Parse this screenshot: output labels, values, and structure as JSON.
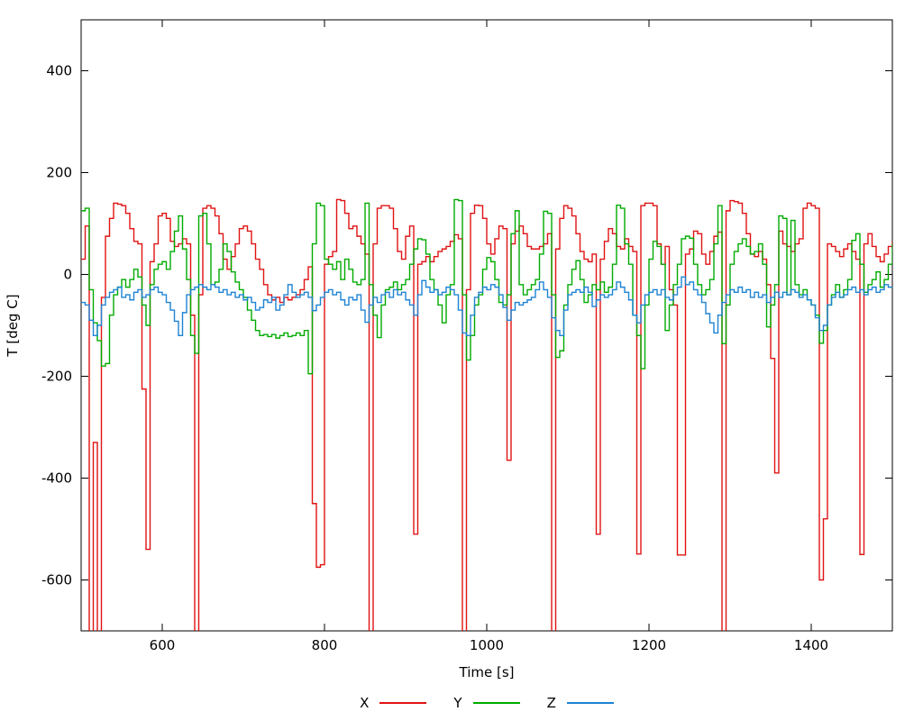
{
  "chart_data": {
    "type": "line",
    "line_style": "steps",
    "title": "",
    "xlabel": "Time [s]",
    "ylabel": "T [deg C]",
    "xlim": [
      500,
      1500
    ],
    "ylim": [
      -700,
      500
    ],
    "xticks": [
      600,
      800,
      1000,
      1200,
      1400
    ],
    "yticks": [
      -600,
      -400,
      -200,
      0,
      200,
      400
    ],
    "grid": false,
    "legend_position": "bottom-center",
    "axis_color": "#000000",
    "x_start": 500,
    "x_step": 5,
    "series": [
      {
        "name": "X",
        "color": "#e01212",
        "values": [
          30,
          95,
          -720,
          -330,
          -730,
          -45,
          75,
          110,
          140,
          138,
          135,
          120,
          90,
          65,
          60,
          -225,
          -540,
          25,
          60,
          115,
          120,
          110,
          65,
          55,
          60,
          70,
          60,
          -80,
          -750,
          -40,
          130,
          135,
          130,
          115,
          80,
          30,
          10,
          35,
          60,
          90,
          95,
          85,
          60,
          30,
          10,
          -20,
          -40,
          -50,
          -45,
          -55,
          -45,
          -50,
          -45,
          -40,
          -30,
          -10,
          15,
          -450,
          -575,
          -570,
          20,
          35,
          45,
          147,
          145,
          120,
          90,
          95,
          75,
          60,
          40,
          -750,
          60,
          130,
          135,
          135,
          130,
          90,
          45,
          30,
          75,
          95,
          -510,
          20,
          25,
          35,
          25,
          35,
          45,
          50,
          55,
          65,
          78,
          70,
          -730,
          -30,
          120,
          136,
          135,
          110,
          60,
          40,
          70,
          95,
          90,
          -365,
          60,
          85,
          95,
          80,
          55,
          50,
          50,
          55,
          60,
          80,
          -730,
          50,
          110,
          135,
          130,
          115,
          80,
          45,
          30,
          25,
          40,
          -510,
          30,
          65,
          90,
          80,
          55,
          50,
          70,
          55,
          45,
          -549,
          135,
          140,
          140,
          135,
          60,
          20,
          55,
          -30,
          -60,
          -551,
          -551,
          40,
          50,
          85,
          80,
          40,
          20,
          45,
          75,
          83,
          -750,
          125,
          145,
          143,
          140,
          120,
          80,
          40,
          35,
          45,
          30,
          -20,
          -165,
          -390,
          85,
          60,
          55,
          45,
          60,
          70,
          130,
          140,
          135,
          130,
          -600,
          -480,
          60,
          55,
          45,
          35,
          50,
          60,
          45,
          30,
          -550,
          60,
          80,
          55,
          35,
          25,
          40,
          55,
          65
        ]
      },
      {
        "name": "Y",
        "color": "#00ab00",
        "values": [
          125,
          130,
          -30,
          -95,
          -130,
          -180,
          -175,
          -80,
          -40,
          -25,
          -10,
          -25,
          -10,
          10,
          -5,
          -60,
          -100,
          -20,
          10,
          20,
          25,
          10,
          45,
          85,
          115,
          50,
          -10,
          -120,
          -155,
          115,
          120,
          60,
          -20,
          -15,
          10,
          60,
          45,
          5,
          -15,
          -30,
          -45,
          -70,
          -90,
          -110,
          -120,
          -118,
          -122,
          -118,
          -125,
          -120,
          -115,
          -122,
          -120,
          -115,
          -120,
          -110,
          -195,
          60,
          140,
          135,
          30,
          20,
          10,
          25,
          -10,
          30,
          10,
          -15,
          -20,
          -10,
          140,
          -20,
          -80,
          -124,
          -60,
          -30,
          -25,
          -15,
          -30,
          -20,
          -10,
          20,
          50,
          70,
          68,
          40,
          -10,
          -30,
          -60,
          -95,
          -40,
          -20,
          147,
          145,
          -40,
          -168,
          -120,
          -60,
          -40,
          10,
          33,
          25,
          -10,
          -55,
          -60,
          -40,
          80,
          125,
          -20,
          -40,
          -30,
          -20,
          -10,
          40,
          124,
          120,
          -40,
          -163,
          -150,
          -60,
          -20,
          10,
          27,
          -10,
          -55,
          -40,
          -20,
          -30,
          -15,
          -35,
          -25,
          20,
          136,
          130,
          60,
          20,
          -80,
          -120,
          -185,
          -60,
          30,
          65,
          55,
          20,
          -110,
          -60,
          -20,
          20,
          70,
          75,
          71,
          20,
          -20,
          -40,
          -30,
          -10,
          60,
          135,
          -136,
          -60,
          20,
          45,
          60,
          70,
          55,
          40,
          45,
          60,
          20,
          -103,
          -60,
          -20,
          115,
          110,
          -40,
          106,
          -20,
          -40,
          -30,
          -50,
          -60,
          -80,
          -135,
          -110,
          -60,
          -40,
          -20,
          -45,
          -30,
          -10,
          67,
          80,
          20,
          -35,
          -20,
          -10,
          5,
          -25,
          -10,
          20,
          60
        ]
      },
      {
        "name": "Z",
        "color": "#1d83d4",
        "values": [
          -55,
          -60,
          -90,
          -120,
          -100,
          -60,
          -45,
          -35,
          -30,
          -25,
          -45,
          -40,
          -50,
          -35,
          -30,
          -45,
          -40,
          -30,
          -25,
          -35,
          -40,
          -55,
          -70,
          -92,
          -120,
          -75,
          -40,
          -30,
          -25,
          -20,
          -25,
          -30,
          -20,
          -25,
          -35,
          -30,
          -40,
          -35,
          -45,
          -40,
          -50,
          -45,
          -55,
          -70,
          -65,
          -50,
          -55,
          -45,
          -70,
          -60,
          -40,
          -20,
          -35,
          -45,
          -40,
          -35,
          -45,
          -71,
          -60,
          -45,
          -35,
          -30,
          -40,
          -35,
          -50,
          -60,
          -45,
          -50,
          -40,
          -70,
          -94,
          -60,
          -45,
          -55,
          -40,
          -35,
          -45,
          -30,
          -40,
          -35,
          -50,
          -60,
          -80,
          -40,
          -12,
          -25,
          -35,
          -30,
          -40,
          -35,
          -25,
          -30,
          -40,
          -70,
          -115,
          -120,
          -80,
          -45,
          -35,
          -25,
          -30,
          -20,
          -25,
          -40,
          -65,
          -90,
          -70,
          -55,
          -60,
          -55,
          -50,
          -45,
          -30,
          -15,
          -30,
          -45,
          -85,
          -110,
          -120,
          -70,
          -40,
          -35,
          -30,
          -35,
          -25,
          -35,
          -63,
          -50,
          -40,
          -45,
          -40,
          -30,
          -15,
          -25,
          -35,
          -50,
          -80,
          -95,
          -60,
          -40,
          -35,
          -30,
          -40,
          -30,
          -45,
          -50,
          -40,
          -25,
          -5,
          -20,
          -15,
          -30,
          -40,
          -55,
          -77,
          -95,
          -115,
          -80,
          -55,
          -40,
          -30,
          -35,
          -25,
          -35,
          -30,
          -45,
          -35,
          -45,
          -40,
          -55,
          -45,
          -35,
          -45,
          -35,
          -40,
          -30,
          -35,
          -45,
          -40,
          -50,
          -60,
          -85,
          -110,
          -100,
          -60,
          -45,
          -35,
          -45,
          -40,
          -30,
          -25,
          -35,
          -30,
          -40,
          -30,
          -25,
          -35,
          -30,
          -20,
          -25,
          -25
        ]
      }
    ]
  }
}
